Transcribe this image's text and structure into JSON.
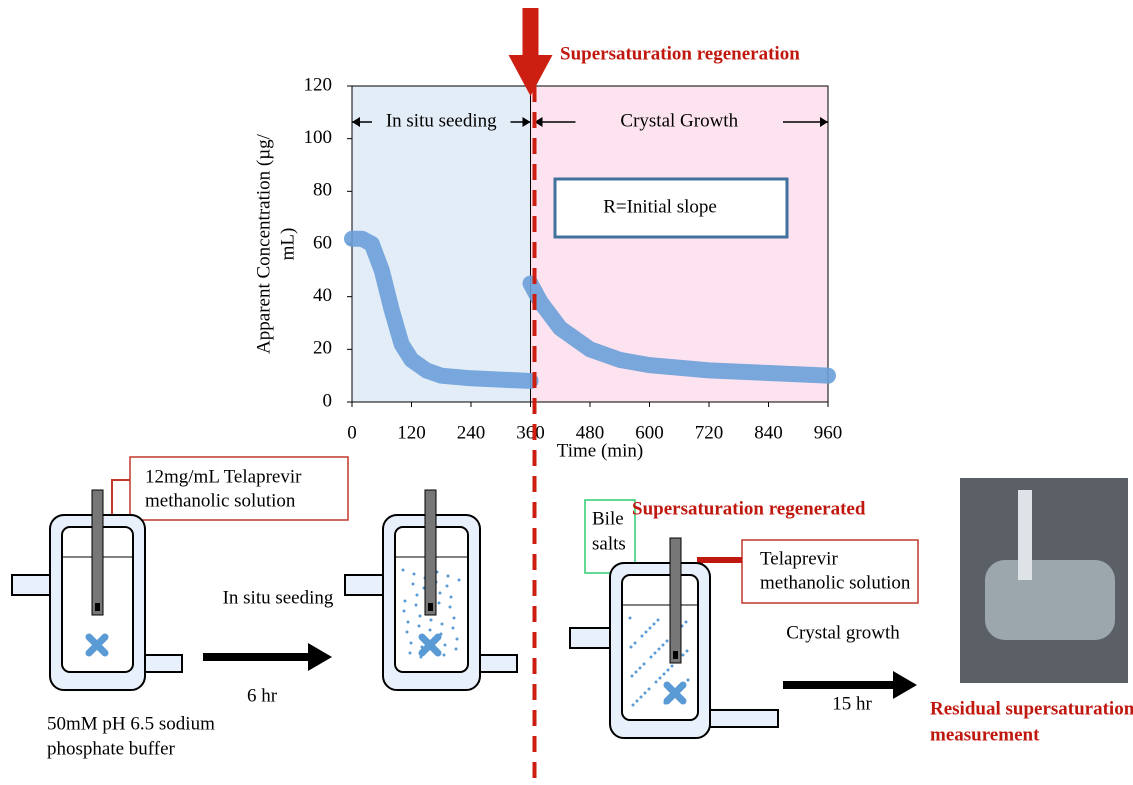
{
  "chart_data": {
    "type": "line",
    "x_label": "Time (min)",
    "y_label": [
      "Apparent Concentration (µg/",
      "mL)"
    ],
    "x": [
      0,
      20,
      40,
      60,
      80,
      100,
      120,
      150,
      180,
      240,
      300,
      360,
      360,
      360,
      380,
      420,
      480,
      540,
      600,
      720,
      840,
      960
    ],
    "series": [
      {
        "color": "#6a9fd8",
        "values": [
          62,
          62,
          60,
          50,
          35,
          22,
          16,
          12,
          10,
          9,
          8.5,
          8,
          null,
          45,
          38,
          28,
          20,
          16,
          14,
          12,
          11,
          10
        ]
      }
    ],
    "xlim": [
      0,
      960
    ],
    "xticks": [
      0,
      120,
      240,
      360,
      480,
      600,
      720,
      840,
      960
    ],
    "ylim": [
      0,
      120
    ],
    "yticks": [
      0,
      20,
      40,
      60,
      80,
      100,
      120
    ],
    "regions": [
      {
        "name": "In situ seeding",
        "from": 0,
        "to": 360,
        "color": "#e3edf7"
      },
      {
        "name": "Crystal Growth",
        "from": 360,
        "to": 960,
        "color": "#fde3ef"
      }
    ],
    "marker": {
      "x": 360,
      "label": "Supersaturation regeneration",
      "color": "#cc1f12"
    },
    "annotation": "R=Initial slope"
  },
  "diagram": {
    "stock_label": [
      "12mg/mL Telaprevir",
      "methanolic solution"
    ],
    "step1": "In situ seeding",
    "step1_time": "6 hr",
    "buffer_label": [
      "50mM pH 6.5 sodium",
      "phosphate buffer"
    ],
    "bile_label": [
      "Bile",
      "salts"
    ],
    "regenerated_label": "Supersaturation regenerated",
    "telaprevir_label": [
      "Telaprevir",
      "methanolic solution"
    ],
    "step2": "Crystal growth",
    "step2_time": "15 hr",
    "measurement_label": [
      "Residual supersaturation",
      "measurement"
    ]
  }
}
